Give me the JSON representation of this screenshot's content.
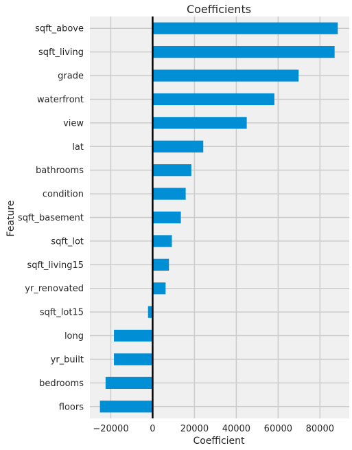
{
  "chart_data": {
    "type": "bar",
    "orientation": "horizontal",
    "title": "Coefficients",
    "xlabel": "Coefficient",
    "ylabel": "Feature",
    "categories": [
      "sqft_above",
      "sqft_living",
      "grade",
      "waterfront",
      "view",
      "lat",
      "bathrooms",
      "condition",
      "sqft_basement",
      "sqft_lot",
      "sqft_living15",
      "yr_renovated",
      "sqft_lot15",
      "long",
      "yr_built",
      "bedrooms",
      "floors"
    ],
    "values": [
      88500,
      87000,
      69800,
      58200,
      45000,
      24200,
      18500,
      15800,
      13500,
      9200,
      7800,
      6200,
      -2200,
      -18500,
      -18500,
      -22500,
      -25200
    ],
    "xlim": [
      -30000,
      94000
    ],
    "xticks": [
      -20000,
      0,
      20000,
      40000,
      60000,
      80000
    ],
    "xtick_labels": [
      "−20000",
      "0",
      "20000",
      "40000",
      "60000",
      "80000"
    ],
    "grid": true,
    "colors": {
      "bar": "#008fd5",
      "background": "#f0f0f0",
      "grid": "#cbcbcb",
      "zero_line": "#000000",
      "text": "#262626"
    }
  }
}
